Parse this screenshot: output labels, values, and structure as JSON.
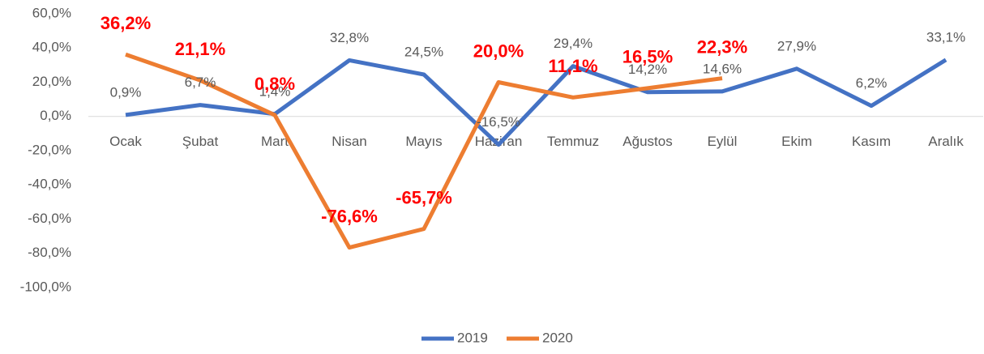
{
  "chart_data": {
    "type": "line",
    "categories": [
      "Ocak",
      "Şubat",
      "Mart",
      "Nisan",
      "Mayıs",
      "Haziran",
      "Temmuz",
      "Ağustos",
      "Eylül",
      "Ekim",
      "Kasım",
      "Aralık"
    ],
    "series": [
      {
        "name": "2019",
        "color": "#4472c4",
        "values": [
          0.9,
          6.7,
          1.4,
          32.8,
          24.5,
          -16.5,
          29.4,
          14.2,
          14.6,
          27.9,
          6.2,
          33.1
        ],
        "value_labels": [
          "0,9%",
          "6,7%",
          "1,4%",
          "32,8%",
          "24,5%",
          "-16,5%",
          "29,4%",
          "14,2%",
          "14,6%",
          "27,9%",
          "6,2%",
          "33,1%"
        ]
      },
      {
        "name": "2020",
        "color": "#ed7d31",
        "values": [
          36.2,
          21.1,
          0.8,
          -76.6,
          -65.7,
          20.0,
          11.1,
          16.5,
          22.3,
          null,
          null,
          null
        ],
        "value_labels": [
          "36,2%",
          "21,1%",
          "0,8%",
          "-76,6%",
          "-65,7%",
          "20,0%",
          "11,1%",
          "16,5%",
          "22,3%",
          null,
          null,
          null
        ]
      }
    ],
    "ylim": [
      -100,
      60
    ],
    "yticks": [
      {
        "value": 60,
        "label": "60,0%"
      },
      {
        "value": 40,
        "label": "40,0%"
      },
      {
        "value": 20,
        "label": "20,0%"
      },
      {
        "value": 0,
        "label": "0,0%"
      },
      {
        "value": -20,
        "label": "-20,0%"
      },
      {
        "value": -40,
        "label": "-40,0%"
      },
      {
        "value": -60,
        "label": "-60,0%"
      },
      {
        "value": -80,
        "label": "-80,0%"
      },
      {
        "value": -100,
        "label": "-100,0%"
      }
    ],
    "grid": false
  }
}
